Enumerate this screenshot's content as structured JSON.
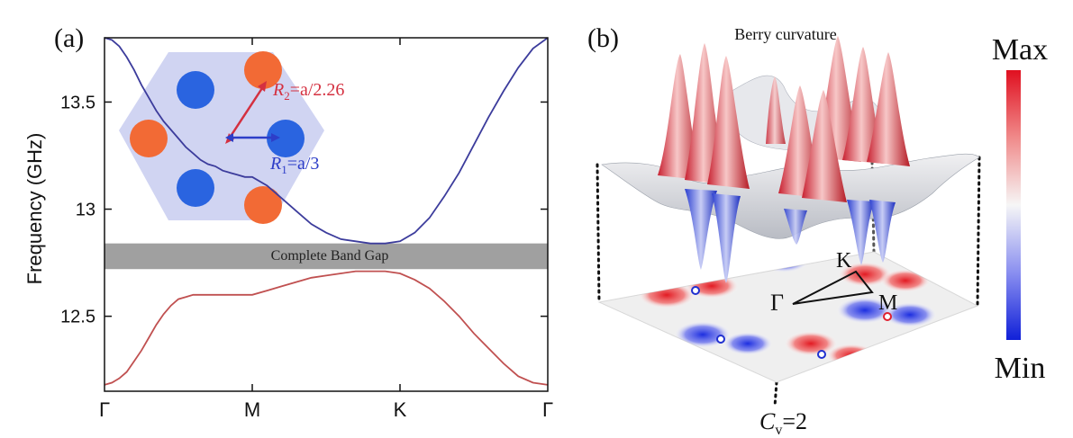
{
  "panel_a": {
    "label": "(a)",
    "ylabel": "Frequency (GHz)",
    "gap_label": "Complete Band Gap",
    "inset": {
      "r2_label": "R",
      "r2_sub": "2",
      "r2_rest": "=a/2.26",
      "r1_label": "R",
      "r1_sub": "1",
      "r1_rest": "=a/3"
    }
  },
  "panel_b": {
    "label": "(b)",
    "title": "Berry curvature",
    "colorbar": {
      "max_label": "Max",
      "min_label": "Min"
    },
    "point_labels": {
      "k": "K",
      "m": "M",
      "gamma": "Γ"
    },
    "chern": {
      "symbol": "C",
      "sub": "v",
      "rest": "=2"
    }
  },
  "colors": {
    "upper_band": "#3c3c9c",
    "lower_band": "#c05050",
    "gap_fill": "#a0a0a0",
    "inset_hex": "#c8cdf0",
    "rod_blue": "#2a64e0",
    "rod_orange": "#f26a35",
    "r2_color": "#d43040",
    "r1_color": "#2d3ec8"
  },
  "chart_data": {
    "type": "line",
    "xlabel": "",
    "ylabel": "Frequency (GHz)",
    "x_ticks": [
      "Γ",
      "M",
      "K",
      "Γ"
    ],
    "ylim": [
      12.15,
      13.8
    ],
    "y_ticks": [
      12.5,
      13,
      13.5
    ],
    "y_tick_labels": [
      "12.5",
      "13",
      "13.5"
    ],
    "band_gap": [
      12.72,
      12.84
    ],
    "series": [
      {
        "x": [
          0,
          0.05,
          0.1,
          0.15,
          0.2,
          0.25,
          0.3,
          0.35,
          0.4,
          0.45,
          0.5,
          0.55,
          0.6,
          0.65,
          0.7,
          0.75,
          0.8,
          0.85,
          0.9,
          0.95,
          1.0,
          1.1,
          1.2,
          1.3,
          1.4,
          1.5,
          1.6,
          1.7,
          1.8,
          1.9,
          2.0,
          2.1,
          2.2,
          2.3,
          2.4,
          2.5,
          2.6,
          2.7,
          2.8,
          2.9,
          3.0
        ],
        "values": [
          13.8,
          13.79,
          13.76,
          13.71,
          13.65,
          13.58,
          13.52,
          13.46,
          13.41,
          13.37,
          13.33,
          13.29,
          13.26,
          13.23,
          13.21,
          13.2,
          13.18,
          13.17,
          13.16,
          13.15,
          13.15,
          13.11,
          13.05,
          12.99,
          12.93,
          12.89,
          12.86,
          12.85,
          12.84,
          12.84,
          12.85,
          12.89,
          12.96,
          13.06,
          13.17,
          13.3,
          13.43,
          13.55,
          13.66,
          13.75,
          13.8
        ]
      },
      {
        "x": [
          0,
          0.05,
          0.1,
          0.15,
          0.2,
          0.25,
          0.3,
          0.35,
          0.4,
          0.45,
          0.5,
          0.55,
          0.6,
          0.65,
          0.7,
          0.75,
          0.8,
          0.85,
          0.9,
          0.95,
          1.0,
          1.1,
          1.2,
          1.3,
          1.4,
          1.5,
          1.6,
          1.7,
          1.8,
          1.9,
          2.0,
          2.1,
          2.2,
          2.3,
          2.4,
          2.5,
          2.6,
          2.7,
          2.8,
          2.9,
          3.0
        ],
        "values": [
          12.18,
          12.19,
          12.21,
          12.24,
          12.29,
          12.34,
          12.4,
          12.46,
          12.51,
          12.55,
          12.58,
          12.59,
          12.6,
          12.6,
          12.6,
          12.6,
          12.6,
          12.6,
          12.6,
          12.6,
          12.6,
          12.62,
          12.64,
          12.66,
          12.68,
          12.69,
          12.7,
          12.71,
          12.71,
          12.71,
          12.7,
          12.67,
          12.63,
          12.57,
          12.5,
          12.42,
          12.35,
          12.28,
          12.22,
          12.19,
          12.18
        ]
      }
    ]
  }
}
